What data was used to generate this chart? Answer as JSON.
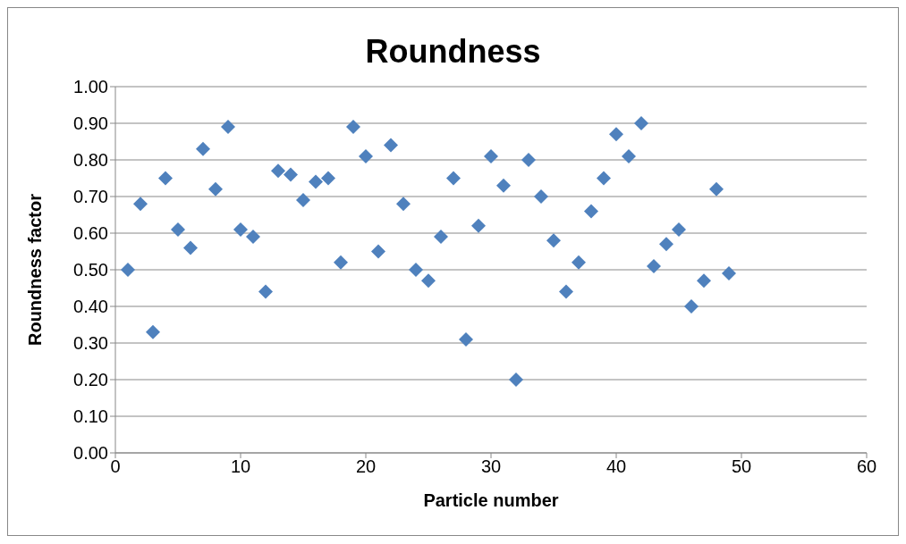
{
  "chart_data": {
    "type": "scatter",
    "title": "Roundness",
    "xlabel": "Particle number",
    "ylabel": "Roundness factor",
    "x": [
      1,
      2,
      3,
      4,
      5,
      6,
      7,
      8,
      9,
      10,
      11,
      12,
      13,
      14,
      15,
      16,
      17,
      18,
      19,
      20,
      21,
      22,
      23,
      24,
      25,
      26,
      27,
      28,
      29,
      30,
      31,
      32,
      33,
      34,
      35,
      36,
      37,
      38,
      39,
      40,
      41,
      42,
      43,
      44,
      45,
      46,
      47,
      48,
      49
    ],
    "series": [
      {
        "color": "#4f81bd",
        "values": [
          0.5,
          0.68,
          0.33,
          0.75,
          0.61,
          0.56,
          0.83,
          0.72,
          0.89,
          0.61,
          0.59,
          0.44,
          0.77,
          0.76,
          0.69,
          0.74,
          0.75,
          0.52,
          0.89,
          0.81,
          0.55,
          0.84,
          0.68,
          0.5,
          0.47,
          0.59,
          0.75,
          0.31,
          0.62,
          0.81,
          0.73,
          0.2,
          0.8,
          0.7,
          0.58,
          0.44,
          0.52,
          0.66,
          0.75,
          0.87,
          0.81,
          0.9,
          0.51,
          0.57,
          0.61,
          0.4,
          0.47,
          0.72,
          0.49
        ]
      }
    ],
    "xlim": [
      0,
      60
    ],
    "xticks": [
      0,
      10,
      20,
      30,
      40,
      50,
      60
    ],
    "ylim": [
      0,
      1
    ],
    "yticks": [
      {
        "value": 0,
        "label": "0.00"
      },
      {
        "value": 0.1,
        "label": "0.10"
      },
      {
        "value": 0.2,
        "label": "0.20"
      },
      {
        "value": 0.3,
        "label": "0.30"
      },
      {
        "value": 0.4,
        "label": "0.40"
      },
      {
        "value": 0.5,
        "label": "0.50"
      },
      {
        "value": 0.6,
        "label": "0.60"
      },
      {
        "value": 0.7,
        "label": "0.70"
      },
      {
        "value": 0.8,
        "label": "0.80"
      },
      {
        "value": 0.9,
        "label": "0.90"
      },
      {
        "value": 1,
        "label": "1.00"
      }
    ],
    "grid": "y",
    "marker": "diamond"
  }
}
